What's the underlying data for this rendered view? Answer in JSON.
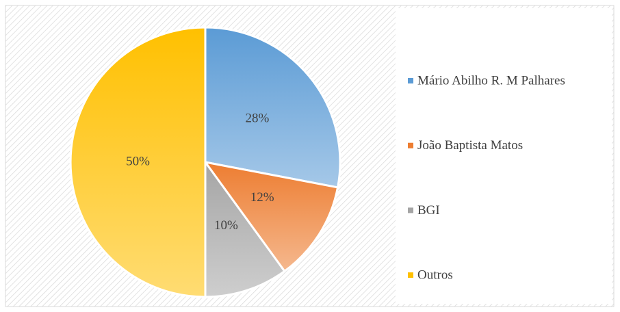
{
  "chart_data": {
    "type": "pie",
    "categories": [
      "Mário Abilho R. M Palhares",
      "João Baptista Matos",
      "BGI",
      "Outros"
    ],
    "values": [
      28,
      12,
      10,
      50
    ],
    "value_labels": [
      "28%",
      "12%",
      "10%",
      "50%"
    ],
    "colors": [
      "#5b9bd5",
      "#ed7d31",
      "#a5a5a5",
      "#ffc000"
    ],
    "legend": "right"
  }
}
